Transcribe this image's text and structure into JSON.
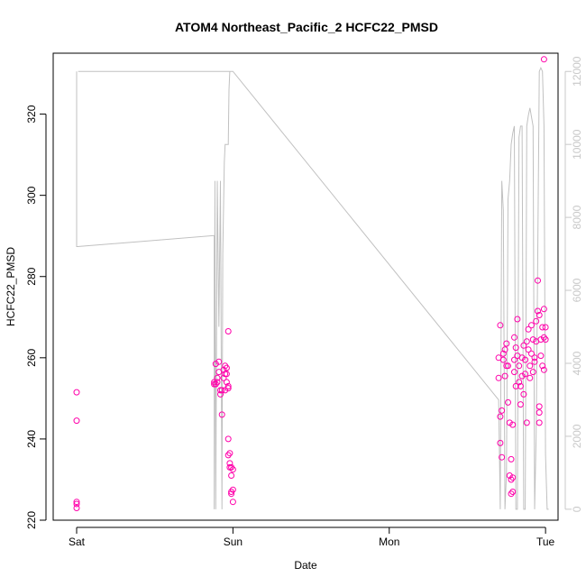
{
  "chart_data": {
    "type": "scatter",
    "title": "ATOM4 Northeast_Pacific_2 HCFC22_PMSD",
    "xlabel": "Date",
    "ylabel": "HCFC22_PMSD",
    "x_ticks": [
      {
        "day": 0,
        "label": "Sat"
      },
      {
        "day": 1,
        "label": "Sun"
      },
      {
        "day": 2,
        "label": "Mon"
      },
      {
        "day": 3,
        "label": "Tue"
      }
    ],
    "xlim": [
      -0.15,
      3.08
    ],
    "ylim": [
      220,
      335
    ],
    "y_ticks": [
      220,
      240,
      260,
      280,
      300,
      320
    ],
    "y2lim": [
      -300,
      12500
    ],
    "y2_ticks": [
      0,
      2000,
      4000,
      6000,
      8000,
      10000,
      12000
    ],
    "colors": {
      "points": "#ff00aa",
      "altitude_line": "#c0c0c0",
      "right_axis": "#c8c8c8"
    },
    "series": [
      {
        "role": "points",
        "points": [
          [
            0.0,
            224
          ],
          [
            0.0,
            224.5
          ],
          [
            0.0,
            223
          ],
          [
            0.0,
            244.5
          ],
          [
            0.0,
            251.5
          ],
          [
            0.88,
            253.5
          ],
          [
            0.88,
            254
          ],
          [
            0.89,
            258.5
          ],
          [
            0.89,
            253.5
          ],
          [
            0.9,
            254
          ],
          [
            0.9,
            255
          ],
          [
            0.91,
            256.5
          ],
          [
            0.91,
            259
          ],
          [
            0.92,
            252
          ],
          [
            0.92,
            251
          ],
          [
            0.93,
            246
          ],
          [
            0.93,
            252
          ],
          [
            0.94,
            257
          ],
          [
            0.94,
            255
          ],
          [
            0.95,
            256
          ],
          [
            0.95,
            258
          ],
          [
            0.95,
            252
          ],
          [
            0.96,
            254
          ],
          [
            0.96,
            256
          ],
          [
            0.96,
            257.5
          ],
          [
            0.97,
            253
          ],
          [
            0.97,
            266.5
          ],
          [
            0.97,
            240
          ],
          [
            0.97,
            236
          ],
          [
            0.97,
            252.5
          ],
          [
            0.98,
            236.5
          ],
          [
            0.98,
            234
          ],
          [
            0.98,
            233
          ],
          [
            0.99,
            233
          ],
          [
            0.99,
            227
          ],
          [
            0.99,
            226.5
          ],
          [
            0.99,
            231
          ],
          [
            1.0,
            232.5
          ],
          [
            1.0,
            224.5
          ],
          [
            1.0,
            227.5
          ],
          [
            2.7,
            255
          ],
          [
            2.7,
            260
          ],
          [
            2.71,
            268
          ],
          [
            2.71,
            245.5
          ],
          [
            2.71,
            239
          ],
          [
            2.72,
            247
          ],
          [
            2.72,
            235.5
          ],
          [
            2.73,
            261
          ],
          [
            2.73,
            259.5
          ],
          [
            2.74,
            255.5
          ],
          [
            2.74,
            262
          ],
          [
            2.75,
            258
          ],
          [
            2.75,
            263.5
          ],
          [
            2.76,
            258
          ],
          [
            2.76,
            249
          ],
          [
            2.77,
            244
          ],
          [
            2.77,
            231
          ],
          [
            2.78,
            230
          ],
          [
            2.78,
            226.5
          ],
          [
            2.78,
            235
          ],
          [
            2.79,
            227
          ],
          [
            2.79,
            230.5
          ],
          [
            2.79,
            243.5
          ],
          [
            2.8,
            256.5
          ],
          [
            2.8,
            265
          ],
          [
            2.8,
            259.5
          ],
          [
            2.81,
            262.5
          ],
          [
            2.81,
            253
          ],
          [
            2.82,
            269.5
          ],
          [
            2.82,
            260.5
          ],
          [
            2.83,
            258
          ],
          [
            2.83,
            254
          ],
          [
            2.84,
            253
          ],
          [
            2.84,
            248.5
          ],
          [
            2.85,
            260
          ],
          [
            2.85,
            255.5
          ],
          [
            2.86,
            263
          ],
          [
            2.86,
            251
          ],
          [
            2.87,
            256
          ],
          [
            2.87,
            259.5
          ],
          [
            2.88,
            244
          ],
          [
            2.88,
            264
          ],
          [
            2.89,
            267
          ],
          [
            2.89,
            262
          ],
          [
            2.9,
            258
          ],
          [
            2.9,
            255
          ],
          [
            2.91,
            268
          ],
          [
            2.91,
            261
          ],
          [
            2.92,
            264.5
          ],
          [
            2.92,
            256.5
          ],
          [
            2.93,
            260
          ],
          [
            2.93,
            259
          ],
          [
            2.94,
            269
          ],
          [
            2.94,
            264
          ],
          [
            2.95,
            279
          ],
          [
            2.95,
            271.5
          ],
          [
            2.96,
            270.5
          ],
          [
            2.96,
            246.5
          ],
          [
            2.96,
            244
          ],
          [
            2.96,
            248
          ],
          [
            2.97,
            264.5
          ],
          [
            2.97,
            260.5
          ],
          [
            2.98,
            267.5
          ],
          [
            2.98,
            258
          ],
          [
            2.99,
            265
          ],
          [
            2.99,
            272
          ],
          [
            2.99,
            257
          ],
          [
            3.0,
            267.5
          ],
          [
            3.0,
            264.5
          ],
          [
            2.99,
            333.5
          ]
        ]
      },
      {
        "role": "altitude",
        "axis": "right",
        "points": [
          [
            0.0,
            12000
          ],
          [
            0.0,
            7200
          ],
          [
            0.005,
            7200
          ],
          [
            0.88,
            7500
          ],
          [
            0.88,
            0
          ],
          [
            0.885,
            9000
          ],
          [
            0.89,
            0
          ],
          [
            0.9,
            9000
          ],
          [
            0.91,
            5000
          ],
          [
            0.92,
            9000
          ],
          [
            0.93,
            0
          ],
          [
            0.935,
            7000
          ],
          [
            0.945,
            9500
          ],
          [
            0.95,
            10000
          ],
          [
            0.97,
            10000
          ],
          [
            0.975,
            11500
          ],
          [
            0.98,
            12000
          ],
          [
            0.01,
            12000
          ],
          [
            0.985,
            12000
          ],
          [
            0.99,
            12000
          ],
          [
            1.0,
            12000
          ],
          [
            2.7,
            3000
          ],
          [
            2.71,
            0
          ],
          [
            2.72,
            9000
          ],
          [
            2.73,
            8200
          ],
          [
            2.74,
            0
          ],
          [
            2.75,
            1000
          ],
          [
            2.76,
            8500
          ],
          [
            2.77,
            9000
          ],
          [
            2.78,
            10000
          ],
          [
            2.79,
            10300
          ],
          [
            2.8,
            10500
          ],
          [
            2.81,
            0
          ],
          [
            2.82,
            0
          ],
          [
            2.83,
            10200
          ],
          [
            2.84,
            10500
          ],
          [
            2.85,
            10500
          ],
          [
            2.86,
            0
          ],
          [
            2.87,
            0
          ],
          [
            2.88,
            10500
          ],
          [
            2.89,
            10800
          ],
          [
            2.9,
            11000
          ],
          [
            2.92,
            10500
          ],
          [
            2.93,
            0
          ],
          [
            2.94,
            2000
          ],
          [
            2.95,
            7000
          ],
          [
            2.96,
            12000
          ],
          [
            2.97,
            12100
          ],
          [
            2.98,
            12000
          ],
          [
            2.99,
            10500
          ],
          [
            3.0,
            1500
          ],
          [
            3.01,
            0
          ],
          [
            3.02,
            0
          ]
        ]
      }
    ]
  }
}
